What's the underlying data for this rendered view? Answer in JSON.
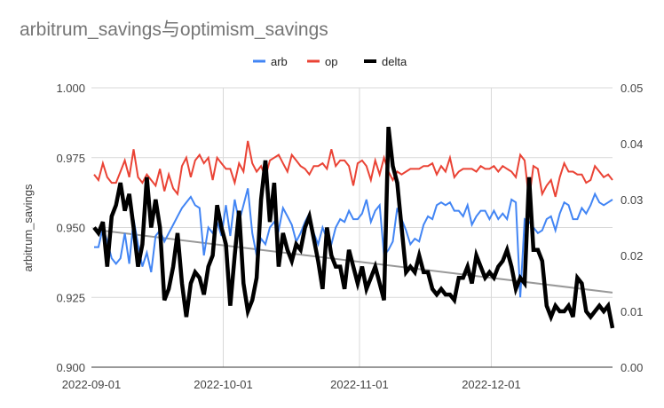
{
  "chart_data": {
    "type": "line",
    "title": "arbitrum_savings与optimism_savings",
    "ylabel": "arbitrum_savings",
    "xlabel": "",
    "x_start": "2022-09-01",
    "x_step": "1 day",
    "x_ticks": [
      "2022-09-01",
      "2022-10-01",
      "2022-11-01",
      "2022-12-01"
    ],
    "x_tick_days": [
      0,
      30,
      61,
      91
    ],
    "ylim": [
      0.9,
      1.0
    ],
    "y_ticks": [
      "0.900",
      "0.925",
      "0.950",
      "0.975",
      "1.000"
    ],
    "y2lim": [
      0,
      0.05
    ],
    "y2_ticks": [
      "0.00",
      "0.01",
      "0.02",
      "0.03",
      "0.04",
      "0.05"
    ],
    "grid": true,
    "legend_position": "top",
    "series": [
      {
        "name": "arb",
        "color": "#4285F4",
        "axis": "left",
        "values": [
          0.943,
          0.943,
          0.95,
          0.945,
          0.939,
          0.937,
          0.939,
          0.948,
          0.937,
          0.953,
          0.944,
          0.936,
          0.941,
          0.934,
          0.947,
          0.949,
          0.945,
          0.948,
          0.951,
          0.954,
          0.957,
          0.959,
          0.961,
          0.958,
          0.957,
          0.94,
          0.95,
          0.948,
          0.952,
          0.947,
          0.958,
          0.947,
          0.96,
          0.952,
          0.958,
          0.964,
          0.948,
          0.94,
          0.946,
          0.944,
          0.95,
          0.952,
          0.949,
          0.957,
          0.954,
          0.951,
          0.945,
          0.948,
          0.952,
          0.955,
          0.948,
          0.944,
          0.95,
          0.946,
          0.944,
          0.95,
          0.953,
          0.952,
          0.956,
          0.953,
          0.953,
          0.955,
          0.96,
          0.952,
          0.956,
          0.958,
          0.94,
          0.942,
          0.945,
          0.957,
          0.953,
          0.949,
          0.944,
          0.946,
          0.945,
          0.951,
          0.954,
          0.953,
          0.958,
          0.959,
          0.958,
          0.959,
          0.956,
          0.956,
          0.954,
          0.958,
          0.951,
          0.954,
          0.956,
          0.956,
          0.953,
          0.956,
          0.953,
          0.955,
          0.953,
          0.96,
          0.959,
          0.925,
          0.953,
          0.952,
          0.95,
          0.948,
          0.949,
          0.953,
          0.954,
          0.949,
          0.955,
          0.959,
          0.958,
          0.953,
          0.953,
          0.957,
          0.955,
          0.958,
          0.962,
          0.959,
          0.958,
          0.959,
          0.96
        ]
      },
      {
        "name": "op",
        "color": "#EA4335",
        "axis": "left",
        "values": [
          0.969,
          0.967,
          0.973,
          0.968,
          0.966,
          0.966,
          0.97,
          0.974,
          0.968,
          0.978,
          0.968,
          0.966,
          0.969,
          0.967,
          0.965,
          0.971,
          0.963,
          0.969,
          0.964,
          0.962,
          0.972,
          0.975,
          0.968,
          0.974,
          0.976,
          0.973,
          0.975,
          0.967,
          0.975,
          0.973,
          0.971,
          0.971,
          0.966,
          0.973,
          0.97,
          0.981,
          0.973,
          0.97,
          0.972,
          0.968,
          0.974,
          0.975,
          0.976,
          0.973,
          0.97,
          0.976,
          0.974,
          0.972,
          0.971,
          0.969,
          0.972,
          0.972,
          0.973,
          0.971,
          0.978,
          0.972,
          0.974,
          0.974,
          0.972,
          0.965,
          0.973,
          0.974,
          0.972,
          0.967,
          0.974,
          0.969,
          0.975,
          0.97,
          0.967,
          0.97,
          0.969,
          0.97,
          0.971,
          0.971,
          0.971,
          0.972,
          0.972,
          0.973,
          0.969,
          0.972,
          0.97,
          0.975,
          0.968,
          0.97,
          0.971,
          0.971,
          0.971,
          0.97,
          0.972,
          0.971,
          0.971,
          0.972,
          0.97,
          0.972,
          0.971,
          0.97,
          0.968,
          0.976,
          0.974,
          0.96,
          0.972,
          0.971,
          0.962,
          0.965,
          0.967,
          0.961,
          0.968,
          0.973,
          0.97,
          0.97,
          0.969,
          0.969,
          0.966,
          0.967,
          0.972,
          0.97,
          0.968,
          0.969,
          0.967
        ]
      },
      {
        "name": "delta",
        "color": "#000000",
        "axis": "right",
        "trendline": true,
        "trendline_color": "#999999",
        "values": [
          0.025,
          0.024,
          0.026,
          0.018,
          0.027,
          0.029,
          0.033,
          0.028,
          0.031,
          0.025,
          0.018,
          0.022,
          0.034,
          0.025,
          0.03,
          0.025,
          0.012,
          0.014,
          0.018,
          0.024,
          0.015,
          0.009,
          0.015,
          0.017,
          0.016,
          0.013,
          0.018,
          0.02,
          0.029,
          0.025,
          0.022,
          0.011,
          0.02,
          0.028,
          0.015,
          0.01,
          0.012,
          0.016,
          0.03,
          0.037,
          0.026,
          0.033,
          0.018,
          0.024,
          0.021,
          0.019,
          0.022,
          0.021,
          0.025,
          0.027,
          0.023,
          0.019,
          0.014,
          0.025,
          0.02,
          0.018,
          0.018,
          0.014,
          0.021,
          0.018,
          0.015,
          0.018,
          0.014,
          0.016,
          0.018,
          0.015,
          0.012,
          0.043,
          0.036,
          0.033,
          0.025,
          0.017,
          0.018,
          0.017,
          0.02,
          0.017,
          0.017,
          0.014,
          0.013,
          0.014,
          0.013,
          0.013,
          0.012,
          0.016,
          0.016,
          0.018,
          0.015,
          0.02,
          0.018,
          0.016,
          0.017,
          0.016,
          0.018,
          0.019,
          0.021,
          0.018,
          0.014,
          0.016,
          0.015,
          0.034,
          0.021,
          0.021,
          0.019,
          0.011,
          0.009,
          0.011,
          0.01,
          0.01,
          0.011,
          0.009,
          0.016,
          0.015,
          0.01,
          0.009,
          0.01,
          0.011,
          0.01,
          0.011,
          0.007
        ]
      }
    ]
  }
}
